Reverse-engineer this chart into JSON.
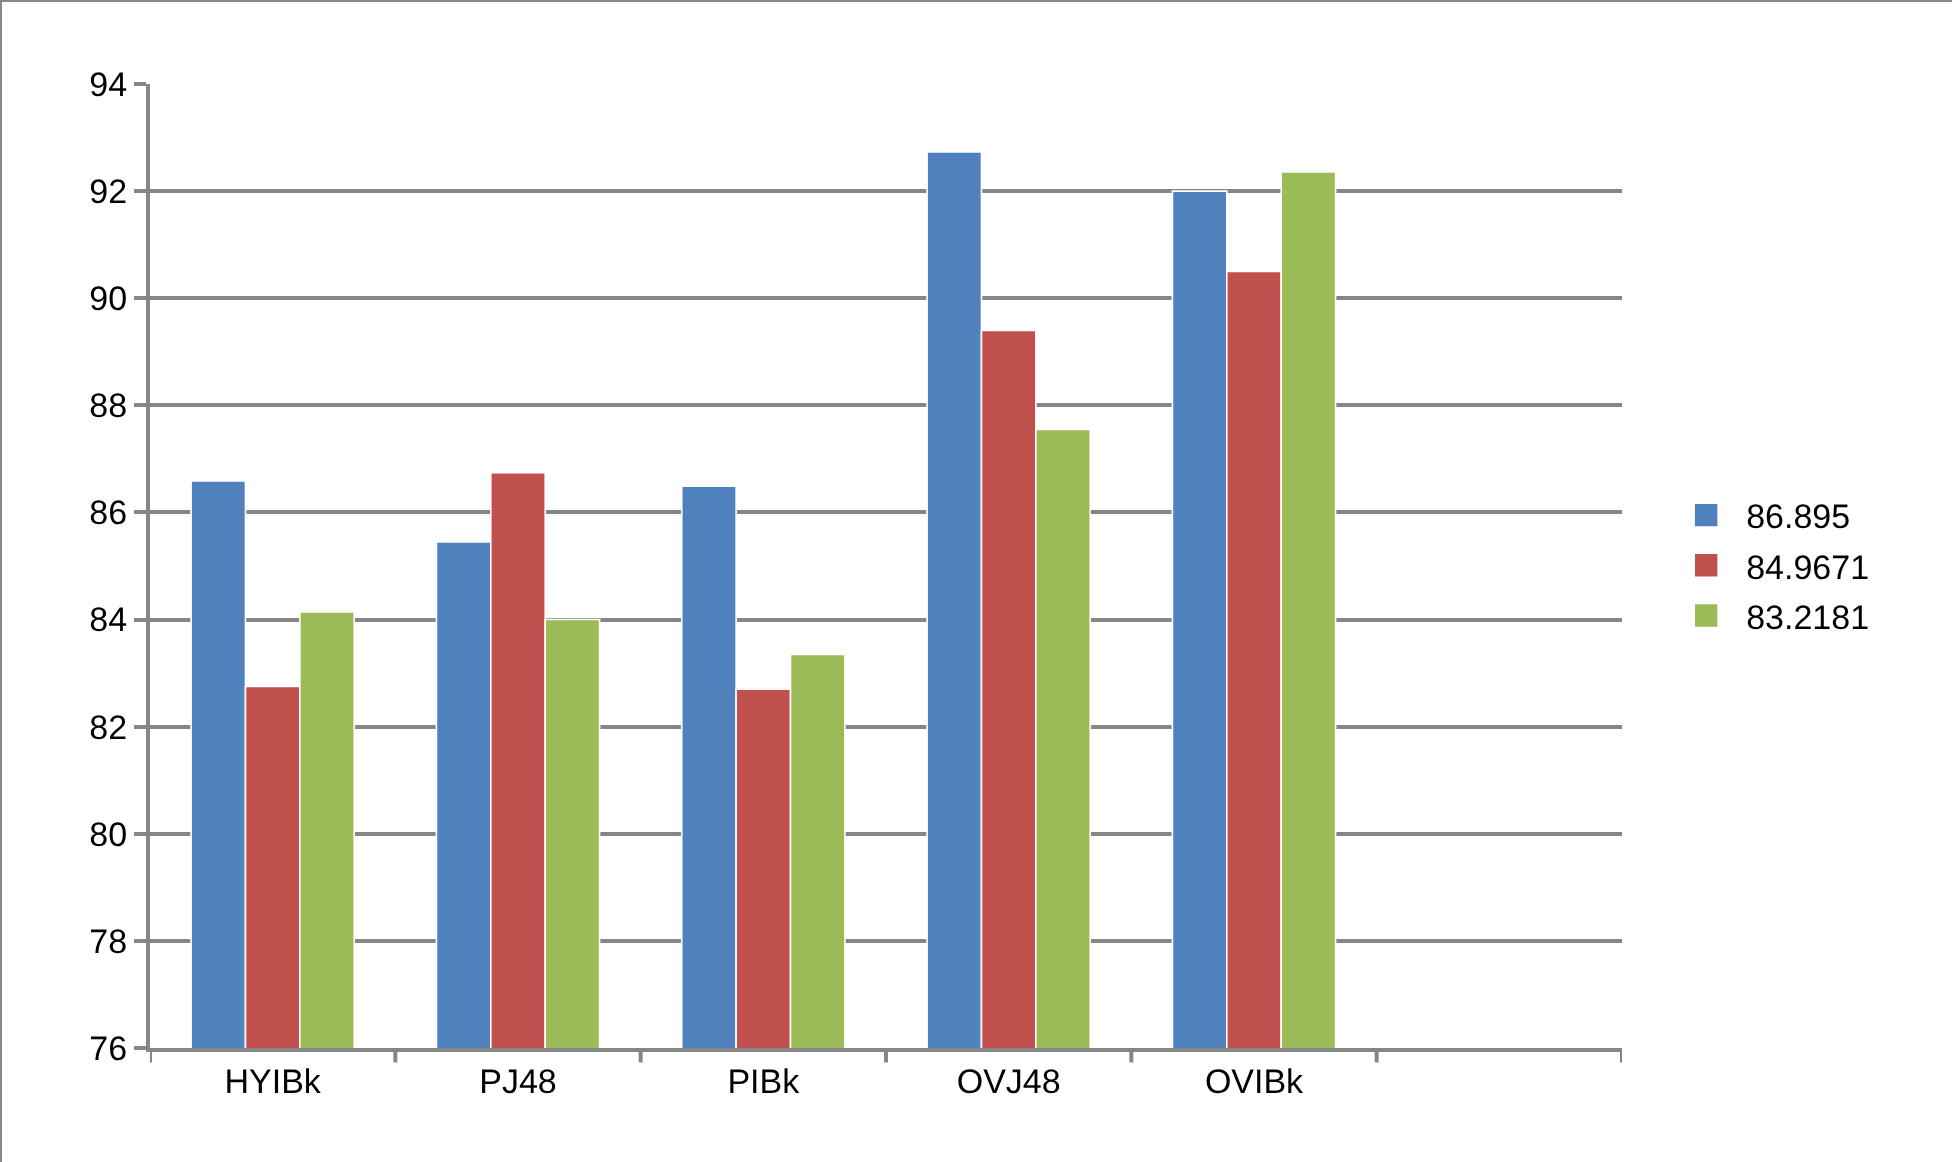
{
  "chart_data": {
    "type": "bar",
    "categories": [
      "HYIBk",
      "PJ48",
      "PIBk",
      "OVJ48",
      "OVIBk",
      null
    ],
    "series": [
      {
        "name": "86.895",
        "color": "#4f81bd",
        "values": [
          86.59,
          85.45,
          86.49,
          92.73,
          92.0,
          null
        ]
      },
      {
        "name": "84.9671",
        "color": "#c0504d",
        "values": [
          82.75,
          86.74,
          82.7,
          89.4,
          90.5,
          null
        ]
      },
      {
        "name": "83.2181",
        "color": "#9bbb59",
        "values": [
          84.14,
          84.0,
          83.35,
          87.55,
          92.36,
          null
        ]
      }
    ],
    "ylim": [
      76,
      94
    ],
    "yticks": [
      76,
      78,
      80,
      82,
      84,
      86,
      88,
      90,
      92,
      94
    ],
    "grid": "y",
    "legend": "right"
  }
}
